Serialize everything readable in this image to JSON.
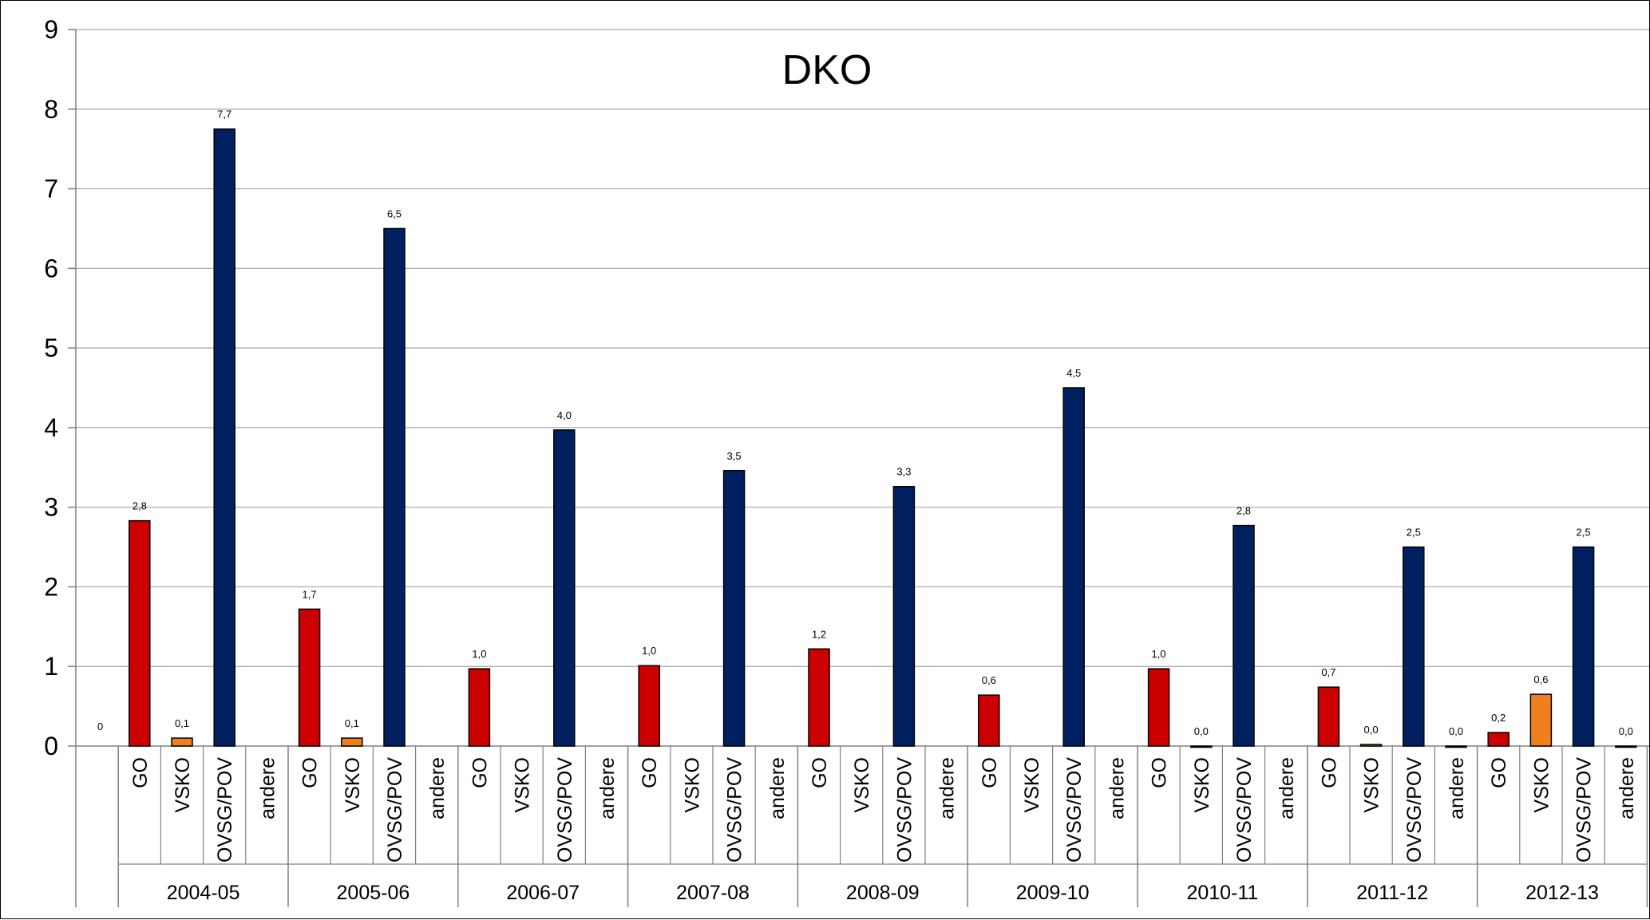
{
  "chart_data": {
    "type": "bar",
    "title": "DKO",
    "ylim": [
      0,
      9
    ],
    "yticks": [
      0,
      1,
      2,
      3,
      4,
      5,
      6,
      7,
      8,
      9
    ],
    "grid": true,
    "legend": "none",
    "leading_label": "0",
    "subcategories": [
      "GO",
      "VSKO",
      "OVSG/POV",
      "andere"
    ],
    "colors": {
      "GO": "#cc0000",
      "VSKO": "#f07f1e",
      "OVSG/POV": "#002060",
      "andere": "#7f7f7f"
    },
    "groups": [
      {
        "label": "2004-05",
        "values": [
          2.83,
          0.1,
          7.75,
          null
        ],
        "labels": [
          "2,8",
          "0,1",
          "7,7",
          ""
        ]
      },
      {
        "label": "2005-06",
        "values": [
          1.72,
          0.1,
          6.5,
          null
        ],
        "labels": [
          "1,7",
          "0,1",
          "6,5",
          ""
        ]
      },
      {
        "label": "2006-07",
        "values": [
          0.97,
          null,
          3.97,
          null
        ],
        "labels": [
          "1,0",
          "",
          "4,0",
          ""
        ]
      },
      {
        "label": "2007-08",
        "values": [
          1.01,
          null,
          3.46,
          null
        ],
        "labels": [
          "1,0",
          "",
          "3,5",
          ""
        ]
      },
      {
        "label": "2008-09",
        "values": [
          1.22,
          null,
          3.26,
          null
        ],
        "labels": [
          "1,2",
          "",
          "3,3",
          ""
        ]
      },
      {
        "label": "2009-10",
        "values": [
          0.64,
          null,
          4.5,
          null
        ],
        "labels": [
          "0,6",
          "",
          "4,5",
          ""
        ]
      },
      {
        "label": "2010-11",
        "values": [
          0.97,
          0.0,
          2.77,
          null
        ],
        "labels": [
          "1,0",
          "0,0",
          "2,8",
          ""
        ]
      },
      {
        "label": "2011-12",
        "values": [
          0.74,
          0.02,
          2.5,
          0.0
        ],
        "labels": [
          "0,7",
          "0,0",
          "2,5",
          "0,0"
        ]
      },
      {
        "label": "2012-13",
        "values": [
          0.17,
          0.65,
          2.5,
          0.0
        ],
        "labels": [
          "0,2",
          "0,6",
          "2,5",
          "0,0"
        ]
      }
    ]
  }
}
